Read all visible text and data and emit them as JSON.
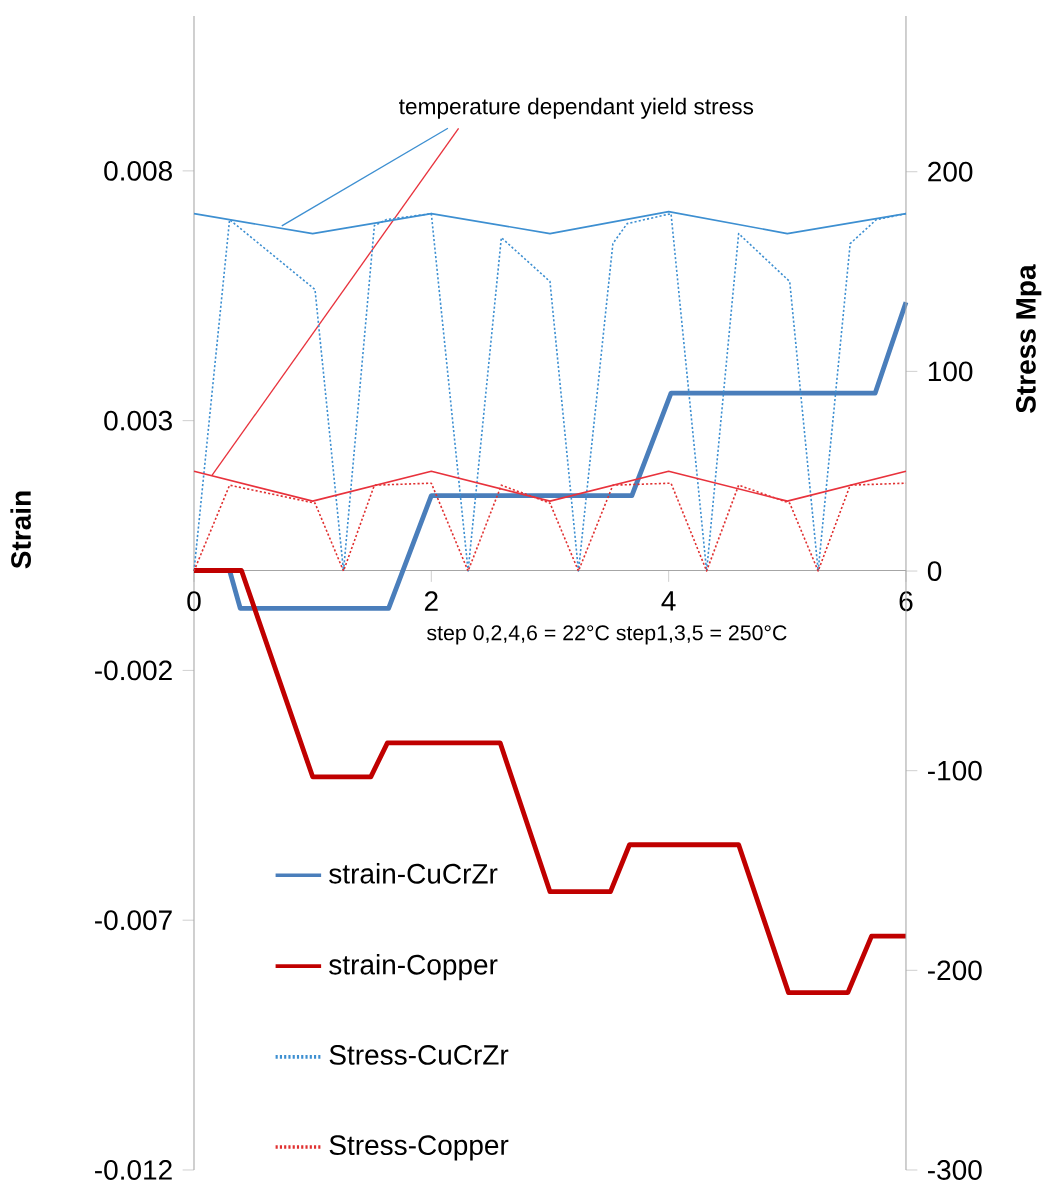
{
  "chart_data": {
    "type": "line",
    "xlabel": "step 0,2,4,6 = 22°C step1,3,5 = 250°C",
    "ylabel": "Strain",
    "y2label": "Stress Mpa",
    "annotations": [
      {
        "text": "temperature dependant yield stress",
        "x": 0.74,
        "y": 0.0069
      }
    ],
    "xlim": [
      0,
      6
    ],
    "xticks": [
      0,
      2,
      4,
      6
    ],
    "ylim": [
      -0.012,
      0.0111
    ],
    "yticks": [
      -0.012,
      -0.007,
      -0.002,
      0.003,
      0.008
    ],
    "y2lim": [
      -300,
      278
    ],
    "y2ticks": [
      -300,
      -200,
      -100,
      0,
      100,
      200
    ],
    "grid": false,
    "legend": "bottom left",
    "marker": "none",
    "series": [
      {
        "name": "strain-CuCrZr",
        "color": "#4a7ebb",
        "line_style": "solid",
        "x": [
          0,
          0.3,
          0.39,
          1.64,
          2.0,
          3.69,
          4.02,
          5.74,
          6.0
        ],
        "values": [
          0,
          0,
          -0.00076,
          -0.00076,
          0.0015,
          0.0015,
          0.00355,
          0.00355,
          0.00537
        ]
      },
      {
        "name": "strain-Copper",
        "color": "#c00000",
        "line_style": "solid",
        "x": [
          0,
          0.4,
          1.0,
          1.49,
          1.63,
          2.58,
          3.0,
          3.51,
          3.67,
          4.59,
          5.01,
          5.51,
          5.71,
          6.0
        ],
        "values": [
          0,
          0,
          -0.00413,
          -0.00413,
          -0.00345,
          -0.00345,
          -0.00643,
          -0.00643,
          -0.00549,
          -0.00549,
          -0.00845,
          -0.00845,
          -0.00732,
          -0.00732
        ]
      },
      {
        "name": "Stress-CuCrZr",
        "color": "#3d8fd1",
        "line_style": "dotted",
        "axis": "y2",
        "x": [
          0,
          0.3,
          1.02,
          1.26,
          1.52,
          1.62,
          2.0,
          2.31,
          2.59,
          3.0,
          3.24,
          3.53,
          3.65,
          4.02,
          4.32,
          4.59,
          5.02,
          5.26,
          5.53,
          5.75,
          6.0
        ],
        "values": [
          0,
          176,
          141,
          0,
          173,
          176,
          179,
          0,
          167,
          145,
          0,
          164,
          174,
          179,
          0,
          169,
          145,
          0,
          164,
          176,
          179
        ]
      },
      {
        "name": "Stress-Copper",
        "color": "#e03030",
        "line_style": "dotted",
        "axis": "y2",
        "x": [
          0,
          0.3,
          1.02,
          1.26,
          1.52,
          2.0,
          2.31,
          2.59,
          3.0,
          3.24,
          3.53,
          4.02,
          4.32,
          4.59,
          5.02,
          5.26,
          5.53,
          6.0
        ],
        "values": [
          0,
          43,
          34,
          0,
          43,
          44,
          0,
          43,
          34,
          0,
          43,
          44,
          0,
          43,
          34,
          0,
          43,
          44
        ]
      },
      {
        "color": "#3d8fd1",
        "line_style": "solid",
        "axis": "y2",
        "x": [
          0,
          1,
          2,
          3,
          4,
          5,
          6
        ],
        "values": [
          179,
          169,
          179,
          169,
          180,
          169,
          179
        ]
      },
      {
        "color": "#e8323c",
        "line_style": "solid",
        "axis": "y2",
        "x": [
          0,
          1,
          2,
          3,
          4,
          5,
          6
        ],
        "values": [
          50,
          35,
          50,
          35,
          50,
          35,
          50
        ]
      }
    ]
  }
}
